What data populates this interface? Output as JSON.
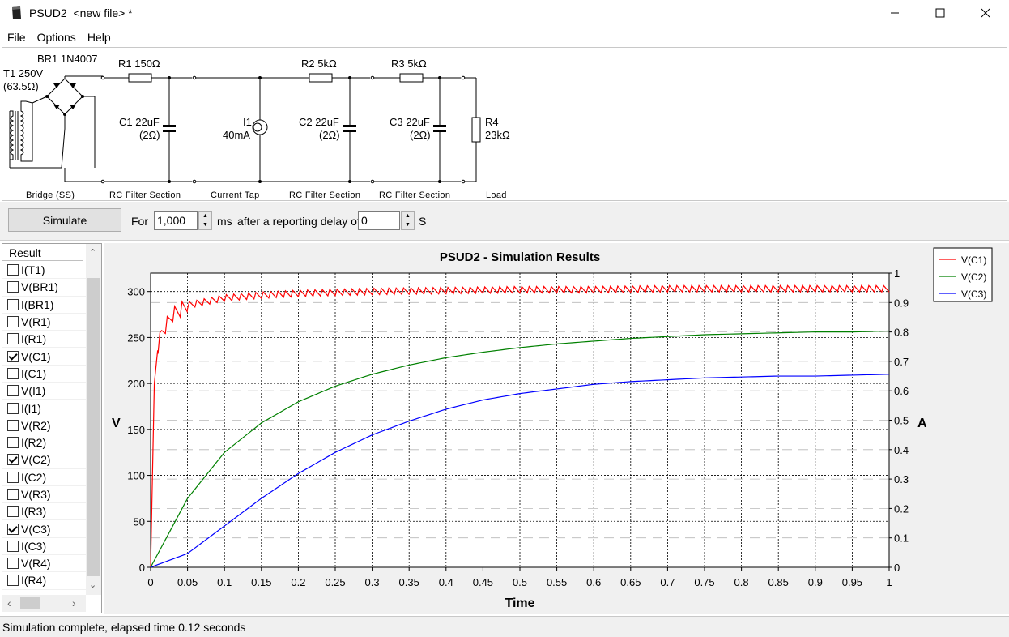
{
  "window": {
    "app_name": "PSUD2",
    "file_name": "<new file> *",
    "title": "PSUD2  <new file> *"
  },
  "menu": [
    "File",
    "Options",
    "Help"
  ],
  "schematic": {
    "bridge": {
      "label": "BR1 1N4007",
      "section": "Bridge (SS)"
    },
    "transformer": {
      "label_line1": "T1 250V",
      "label_line2": "(63.5Ω)"
    },
    "r1": "R1 150Ω",
    "c1": {
      "line1": "C1 22uF",
      "line2": "(2Ω)"
    },
    "i1": {
      "line1": "I1",
      "line2": "40mA"
    },
    "r2": "R2 5kΩ",
    "c2": {
      "line1": "C2 22uF",
      "line2": "(2Ω)"
    },
    "r3": "R3 5kΩ",
    "c3": {
      "line1": "C3 22uF",
      "line2": "(2Ω)"
    },
    "r4": {
      "line1": "R4",
      "line2": "23kΩ"
    },
    "sections": [
      "Bridge (SS)",
      "RC Filter Section",
      "Current Tap",
      "RC Filter Section",
      "RC Filter Section",
      "Load"
    ]
  },
  "toolbar": {
    "simulate_label": "Simulate",
    "for_label": "For",
    "duration_value": "1,000",
    "duration_unit": "ms",
    "delay_label": "after a reporting delay of",
    "delay_value": "0",
    "delay_unit": "S"
  },
  "results": {
    "header": "Result",
    "items": [
      {
        "label": "I(T1)",
        "checked": false
      },
      {
        "label": "V(BR1)",
        "checked": false
      },
      {
        "label": "I(BR1)",
        "checked": false
      },
      {
        "label": "V(R1)",
        "checked": false
      },
      {
        "label": "I(R1)",
        "checked": false
      },
      {
        "label": "V(C1)",
        "checked": true
      },
      {
        "label": "I(C1)",
        "checked": false
      },
      {
        "label": "V(I1)",
        "checked": false
      },
      {
        "label": "I(I1)",
        "checked": false
      },
      {
        "label": "V(R2)",
        "checked": false
      },
      {
        "label": "I(R2)",
        "checked": false
      },
      {
        "label": "V(C2)",
        "checked": true
      },
      {
        "label": "I(C2)",
        "checked": false
      },
      {
        "label": "V(R3)",
        "checked": false
      },
      {
        "label": "I(R3)",
        "checked": false
      },
      {
        "label": "V(C3)",
        "checked": true
      },
      {
        "label": "I(C3)",
        "checked": false
      },
      {
        "label": "V(R4)",
        "checked": false
      },
      {
        "label": "I(R4)",
        "checked": false
      }
    ]
  },
  "chart_data": {
    "type": "line",
    "title": "PSUD2 - Simulation Results",
    "xlabel": "Time",
    "ylabel": "V",
    "y2label": "A",
    "xlim": [
      0,
      1
    ],
    "ylim": [
      0,
      320
    ],
    "y2lim": [
      0,
      1
    ],
    "xticks": [
      "0",
      "0.05",
      "0.1",
      "0.15",
      "0.2",
      "0.25",
      "0.3",
      "0.35",
      "0.4",
      "0.45",
      "0.5",
      "0.55",
      "0.6",
      "0.65",
      "0.7",
      "0.75",
      "0.8",
      "0.85",
      "0.9",
      "0.95",
      "1"
    ],
    "yticks": [
      "0",
      "50",
      "100",
      "150",
      "200",
      "250",
      "300"
    ],
    "y2ticks": [
      "0",
      "0.1",
      "0.2",
      "0.3",
      "0.4",
      "0.5",
      "0.6",
      "0.7",
      "0.8",
      "0.9",
      "1"
    ],
    "grid": true,
    "legend_position": "top-right",
    "series": [
      {
        "name": "V(C1)",
        "color": "#ff0000",
        "x": [
          0,
          0.005,
          0.01,
          0.015,
          0.02,
          0.03,
          0.05,
          0.1,
          0.15,
          0.2,
          0.3,
          0.4,
          0.5,
          0.6,
          0.7,
          0.8,
          0.9,
          1.0
        ],
        "values": [
          0,
          200,
          240,
          255,
          262,
          275,
          285,
          293,
          296,
          298,
          300,
          301,
          302,
          302,
          303,
          303,
          303,
          303
        ],
        "ripple": 7
      },
      {
        "name": "V(C2)",
        "color": "#008000",
        "x": [
          0,
          0.05,
          0.1,
          0.15,
          0.2,
          0.25,
          0.3,
          0.35,
          0.4,
          0.45,
          0.5,
          0.55,
          0.6,
          0.65,
          0.7,
          0.75,
          0.8,
          0.85,
          0.9,
          0.95,
          1.0
        ],
        "values": [
          0,
          75,
          125,
          157,
          180,
          197,
          210,
          220,
          228,
          234,
          239,
          243,
          246,
          249,
          251,
          253,
          254,
          255,
          256,
          256,
          257
        ]
      },
      {
        "name": "V(C3)",
        "color": "#0000ff",
        "x": [
          0,
          0.05,
          0.1,
          0.15,
          0.2,
          0.25,
          0.3,
          0.35,
          0.4,
          0.45,
          0.5,
          0.55,
          0.6,
          0.65,
          0.7,
          0.75,
          0.8,
          0.85,
          0.9,
          0.95,
          1.0
        ],
        "values": [
          0,
          15,
          45,
          75,
          102,
          125,
          144,
          159,
          172,
          182,
          189,
          194,
          199,
          202,
          204,
          206,
          207,
          208,
          208,
          209,
          210
        ]
      }
    ]
  },
  "status": {
    "text": "Simulation complete, elapsed time 0.12 seconds"
  }
}
